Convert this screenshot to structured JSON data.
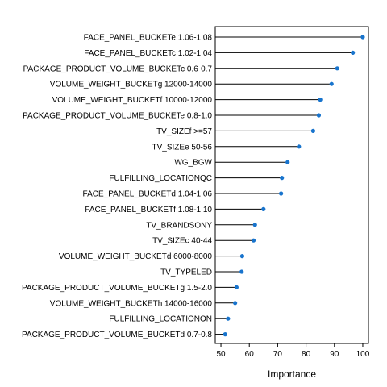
{
  "chart_data": {
    "type": "dotplot",
    "xlabel": "Importance",
    "xlim": [
      48,
      102
    ],
    "xticks": [
      50,
      60,
      70,
      80,
      90,
      100
    ],
    "point_color": "#1874CD",
    "items": [
      {
        "label": "FACE_PANEL_BUCKETe 1.06-1.08",
        "value": 100
      },
      {
        "label": "FACE_PANEL_BUCKETc 1.02-1.04",
        "value": 96.5
      },
      {
        "label": "PACKAGE_PRODUCT_VOLUME_BUCKETc 0.6-0.7",
        "value": 91
      },
      {
        "label": "VOLUME_WEIGHT_BUCKETg 12000-14000",
        "value": 89
      },
      {
        "label": "VOLUME_WEIGHT_BUCKETf 10000-12000",
        "value": 85
      },
      {
        "label": "PACKAGE_PRODUCT_VOLUME_BUCKETe 0.8-1.0",
        "value": 84.5
      },
      {
        "label": "TV_SIZEf >=57",
        "value": 82.5
      },
      {
        "label": "TV_SIZEe 50-56",
        "value": 77.5
      },
      {
        "label": "WG_BGW",
        "value": 73.5
      },
      {
        "label": "FULFILLING_LOCATIONQC",
        "value": 71.5
      },
      {
        "label": "FACE_PANEL_BUCKETd 1.04-1.06",
        "value": 71.2
      },
      {
        "label": "FACE_PANEL_BUCKETf 1.08-1.10",
        "value": 65
      },
      {
        "label": "TV_BRANDSONY",
        "value": 62
      },
      {
        "label": "TV_SIZEc 40-44",
        "value": 61.5
      },
      {
        "label": "VOLUME_WEIGHT_BUCKETd 6000-8000",
        "value": 57.5
      },
      {
        "label": "TV_TYPELED",
        "value": 57.3
      },
      {
        "label": "PACKAGE_PRODUCT_VOLUME_BUCKETg 1.5-2.0",
        "value": 55.5
      },
      {
        "label": "VOLUME_WEIGHT_BUCKETh 14000-16000",
        "value": 55
      },
      {
        "label": "FULFILLING_LOCATIONON",
        "value": 52.5
      },
      {
        "label": "PACKAGE_PRODUCT_VOLUME_BUCKETd 0.7-0.8",
        "value": 51.5
      }
    ]
  }
}
